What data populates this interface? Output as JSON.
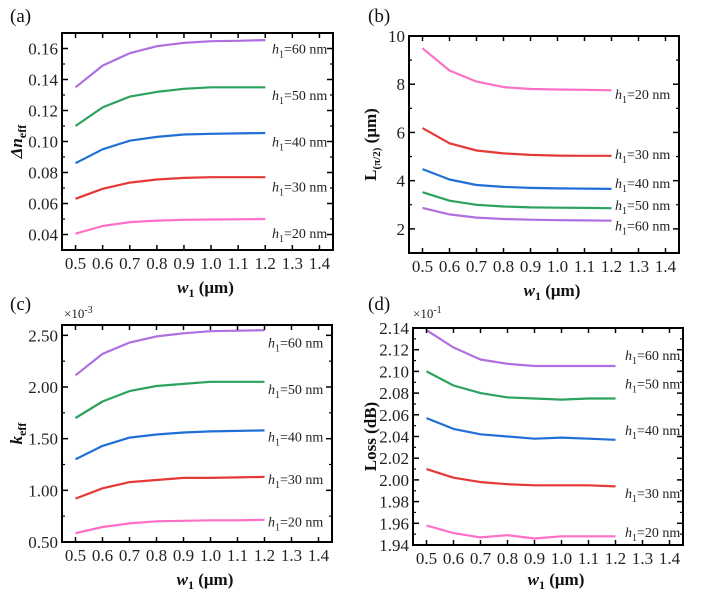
{
  "figure": {
    "colors": {
      "h1_20": "#ff6ec7",
      "h1_30": "#e53935",
      "h1_40": "#1f6fd6",
      "h1_50": "#2ca25f",
      "h1_60": "#b06fe0"
    }
  },
  "chart_data": [
    {
      "id": "a",
      "type": "line",
      "panel_label": "(a)",
      "title": "",
      "xlabel": "w1 (μm)",
      "xlabel_main": "w",
      "xlabel_sub": "1",
      "xlabel_unit": " (μm)",
      "ylabel": "Δn_eff",
      "ylabel_main": "Δn",
      "ylabel_sub": "eff",
      "scale_note": "",
      "xlim": [
        0.45,
        1.45
      ],
      "ylim": [
        0.03,
        0.17
      ],
      "xticks": [
        0.5,
        0.6,
        0.7,
        0.8,
        0.9,
        1.0,
        1.1,
        1.2,
        1.3,
        1.4
      ],
      "xtick_labels": [
        "0.5",
        "0.6",
        "0.7",
        "0.8",
        "0.9",
        "1.0",
        "1.1",
        "1.2",
        "1.3",
        "1.4"
      ],
      "yticks": [
        0.04,
        0.06,
        0.08,
        0.1,
        0.12,
        0.14,
        0.16
      ],
      "ytick_labels": [
        "0.04",
        "0.06",
        "0.08",
        "0.10",
        "0.12",
        "0.14",
        "0.16"
      ],
      "grid": false,
      "legend": "inline-right",
      "x": [
        0.5,
        0.6,
        0.7,
        0.8,
        0.9,
        1.0,
        1.1,
        1.2
      ],
      "series": [
        {
          "name": "h1=60 nm",
          "key": "h1_60",
          "label_main": "h",
          "label_sub": "1",
          "label_rest": "=60 nm",
          "values": [
            0.135,
            0.149,
            0.157,
            0.1615,
            0.1636,
            0.1647,
            0.165,
            0.1654
          ],
          "label_at": 0.16
        },
        {
          "name": "h1=50 nm",
          "key": "h1_50",
          "label_main": "h",
          "label_sub": "1",
          "label_rest": "=50 nm",
          "values": [
            0.11,
            0.122,
            0.129,
            0.132,
            0.134,
            0.135,
            0.135,
            0.135
          ],
          "label_at": 0.13
        },
        {
          "name": "h1=40 nm",
          "key": "h1_40",
          "label_main": "h",
          "label_sub": "1",
          "label_rest": "=40 nm",
          "values": [
            0.086,
            0.095,
            0.1005,
            0.103,
            0.1045,
            0.105,
            0.1052,
            0.1055
          ],
          "label_at": 0.1
        },
        {
          "name": "h1=30 nm",
          "key": "h1_30",
          "label_main": "h",
          "label_sub": "1",
          "label_rest": "=30 nm",
          "values": [
            0.063,
            0.0695,
            0.0735,
            0.0755,
            0.0765,
            0.077,
            0.077,
            0.077
          ],
          "label_at": 0.071
        },
        {
          "name": "h1=20 nm",
          "key": "h1_20",
          "label_main": "h",
          "label_sub": "1",
          "label_rest": "=20 nm",
          "values": [
            0.0405,
            0.0455,
            0.048,
            0.049,
            0.0495,
            0.0497,
            0.0498,
            0.05
          ],
          "label_at": 0.041
        }
      ]
    },
    {
      "id": "b",
      "type": "line",
      "panel_label": "(b)",
      "title": "",
      "xlabel": "w1 (μm)",
      "xlabel_main": "w",
      "xlabel_sub": "1",
      "xlabel_unit": " (μm)",
      "ylabel": "L(π/2) (μm)",
      "ylabel_main": "L",
      "ylabel_sub": "(π/2)",
      "ylabel_unit": " (μm)",
      "scale_note": "",
      "xlim": [
        0.45,
        1.45
      ],
      "ylim": [
        1,
        10
      ],
      "xticks": [
        0.5,
        0.6,
        0.7,
        0.8,
        0.9,
        1.0,
        1.1,
        1.2,
        1.3,
        1.4
      ],
      "xtick_labels": [
        "0.5",
        "0.6",
        "0.7",
        "0.8",
        "0.9",
        "1.0",
        "1.1",
        "1.2",
        "1.3",
        "1.4"
      ],
      "yticks": [
        2,
        4,
        6,
        8,
        10
      ],
      "ytick_labels": [
        "2",
        "4",
        "6",
        "8",
        "10"
      ],
      "grid": false,
      "legend": "inline-right",
      "x": [
        0.5,
        0.6,
        0.7,
        0.8,
        0.9,
        1.0,
        1.1,
        1.2
      ],
      "series": [
        {
          "name": "h1=20 nm",
          "key": "h1_20",
          "label_main": "h",
          "label_sub": "1",
          "label_rest": "=20 nm",
          "values": [
            9.49,
            8.57,
            8.11,
            7.88,
            7.8,
            7.78,
            7.77,
            7.75
          ],
          "label_at": 7.6
        },
        {
          "name": "h1=30 nm",
          "key": "h1_30",
          "label_main": "h",
          "label_sub": "1",
          "label_rest": "=30 nm",
          "values": [
            6.18,
            5.55,
            5.25,
            5.13,
            5.07,
            5.04,
            5.03,
            5.03
          ],
          "label_at": 5.1
        },
        {
          "name": "h1=40 nm",
          "key": "h1_40",
          "label_main": "h",
          "label_sub": "1",
          "label_rest": "=40 nm",
          "values": [
            4.48,
            4.05,
            3.82,
            3.74,
            3.7,
            3.68,
            3.67,
            3.66
          ],
          "label_at": 3.9
        },
        {
          "name": "h1=50 nm",
          "key": "h1_50",
          "label_main": "h",
          "label_sub": "1",
          "label_rest": "=50 nm",
          "values": [
            3.52,
            3.17,
            3.0,
            2.93,
            2.89,
            2.88,
            2.87,
            2.86
          ],
          "label_at": 3.0
        },
        {
          "name": "h1=60 nm",
          "key": "h1_60",
          "label_main": "h",
          "label_sub": "1",
          "label_rest": "=60 nm",
          "values": [
            2.87,
            2.6,
            2.47,
            2.41,
            2.38,
            2.36,
            2.35,
            2.34
          ],
          "label_at": 2.15
        }
      ]
    },
    {
      "id": "c",
      "type": "line",
      "panel_label": "(c)",
      "title": "",
      "xlabel": "w1 (μm)",
      "xlabel_main": "w",
      "xlabel_sub": "1",
      "xlabel_unit": " (μm)",
      "ylabel": "k_eff",
      "ylabel_main": "k",
      "ylabel_sub": "eff",
      "scale_note": "×10",
      "scale_exp": "-3",
      "xlim": [
        0.45,
        1.45
      ],
      "ylim": [
        0.5,
        2.6
      ],
      "xticks": [
        0.5,
        0.6,
        0.7,
        0.8,
        0.9,
        1.0,
        1.1,
        1.2,
        1.3,
        1.4
      ],
      "xtick_labels": [
        "0.5",
        "0.6",
        "0.7",
        "0.8",
        "0.9",
        "1.0",
        "1.1",
        "1.2",
        "1.3",
        "1.4"
      ],
      "yticks": [
        0.5,
        1.0,
        1.5,
        2.0,
        2.5
      ],
      "ytick_labels": [
        "0.50",
        "1.00",
        "1.50",
        "2.00",
        "2.50"
      ],
      "grid": false,
      "legend": "inline-right",
      "x": [
        0.5,
        0.6,
        0.7,
        0.8,
        0.9,
        1.0,
        1.1,
        1.2
      ],
      "series": [
        {
          "name": "h1=60 nm",
          "key": "h1_60",
          "label_main": "h",
          "label_sub": "1",
          "label_rest": "=60 nm",
          "values": [
            2.113,
            2.32,
            2.43,
            2.49,
            2.52,
            2.54,
            2.545,
            2.55
          ],
          "label_at": 2.43
        },
        {
          "name": "h1=50 nm",
          "key": "h1_50",
          "label_main": "h",
          "label_sub": "1",
          "label_rest": "=50 nm",
          "values": [
            1.7,
            1.86,
            1.96,
            2.01,
            2.03,
            2.05,
            2.05,
            2.05
          ],
          "label_at": 1.98
        },
        {
          "name": "h1=40 nm",
          "key": "h1_40",
          "label_main": "h",
          "label_sub": "1",
          "label_rest": "=40 nm",
          "values": [
            1.3,
            1.43,
            1.51,
            1.54,
            1.56,
            1.57,
            1.575,
            1.58
          ],
          "label_at": 1.52
        },
        {
          "name": "h1=30 nm",
          "key": "h1_30",
          "label_main": "h",
          "label_sub": "1",
          "label_rest": "=30 nm",
          "values": [
            0.92,
            1.02,
            1.08,
            1.1,
            1.12,
            1.12,
            1.125,
            1.13
          ],
          "label_at": 1.11
        },
        {
          "name": "h1=20 nm",
          "key": "h1_20",
          "label_main": "h",
          "label_sub": "1",
          "label_rest": "=20 nm",
          "values": [
            0.585,
            0.645,
            0.68,
            0.7,
            0.705,
            0.71,
            0.71,
            0.715
          ],
          "label_at": 0.7
        }
      ]
    },
    {
      "id": "d",
      "type": "line",
      "panel_label": "(d)",
      "title": "",
      "xlabel": "w1 (μm)",
      "xlabel_main": "w",
      "xlabel_sub": "1",
      "xlabel_unit": " (μm)",
      "ylabel": "Loss (dB)",
      "ylabel_main": "Loss (dB)",
      "ylabel_sub": "",
      "scale_note": "×10",
      "scale_exp": "-1",
      "xlim": [
        0.45,
        1.45
      ],
      "ylim": [
        1.94,
        2.14
      ],
      "xticks": [
        0.5,
        0.6,
        0.7,
        0.8,
        0.9,
        1.0,
        1.1,
        1.2,
        1.3,
        1.4
      ],
      "xtick_labels": [
        "0.5",
        "0.6",
        "0.7",
        "0.8",
        "0.9",
        "1.0",
        "1.1",
        "1.2",
        "1.3",
        "1.4"
      ],
      "yticks": [
        1.94,
        1.96,
        1.98,
        2.0,
        2.02,
        2.04,
        2.06,
        2.08,
        2.1,
        2.12,
        2.14
      ],
      "ytick_labels": [
        "1.94",
        "1.96",
        "1.98",
        "2.00",
        "2.02",
        "2.04",
        "2.06",
        "2.08",
        "2.10",
        "2.12",
        "2.14"
      ],
      "grid": false,
      "legend": "inline-right",
      "x": [
        0.5,
        0.6,
        0.7,
        0.8,
        0.9,
        1.0,
        1.1,
        1.2
      ],
      "series": [
        {
          "name": "h1=60 nm",
          "key": "h1_60",
          "label_main": "h",
          "label_sub": "1",
          "label_rest": "=60 nm",
          "values": [
            2.138,
            2.122,
            2.111,
            2.107,
            2.105,
            2.105,
            2.105,
            2.105
          ],
          "label_at": 2.115
        },
        {
          "name": "h1=50 nm",
          "key": "h1_50",
          "label_main": "h",
          "label_sub": "1",
          "label_rest": "=50 nm",
          "values": [
            2.1,
            2.087,
            2.08,
            2.076,
            2.075,
            2.074,
            2.075,
            2.075
          ],
          "label_at": 2.089
        },
        {
          "name": "h1=40 nm",
          "key": "h1_40",
          "label_main": "h",
          "label_sub": "1",
          "label_rest": "=40 nm",
          "values": [
            2.057,
            2.047,
            2.042,
            2.04,
            2.038,
            2.039,
            2.038,
            2.037
          ],
          "label_at": 2.046
        },
        {
          "name": "h1=30 nm",
          "key": "h1_30",
          "label_main": "h",
          "label_sub": "1",
          "label_rest": "=30 nm",
          "values": [
            2.01,
            2.002,
            1.998,
            1.996,
            1.995,
            1.995,
            1.995,
            1.994
          ],
          "label_at": 1.988
        },
        {
          "name": "h1=20 nm",
          "key": "h1_20",
          "label_main": "h",
          "label_sub": "1",
          "label_rest": "=20 nm",
          "values": [
            1.958,
            1.951,
            1.947,
            1.949,
            1.946,
            1.948,
            1.948,
            1.948
          ],
          "label_at": 1.952
        }
      ]
    }
  ]
}
